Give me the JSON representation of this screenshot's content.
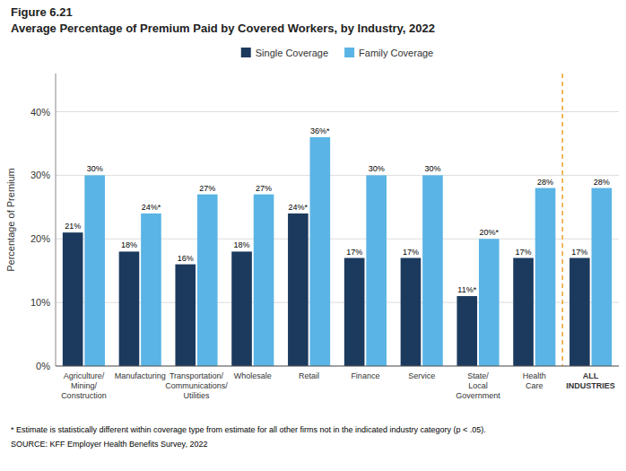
{
  "chart_data": {
    "type": "bar",
    "title": "Figure 6.21",
    "subtitle": "Average Percentage of Premium Paid by Covered Workers, by Industry, 2022",
    "categories": [
      "Agriculture/\nMining/\nConstruction",
      "Manufacturing",
      "Transportation/\nCommunications/\nUtilities",
      "Wholesale",
      "Retail",
      "Finance",
      "Service",
      "State/\nLocal\nGovernment",
      "Health\nCare",
      "ALL\nINDUSTRIES"
    ],
    "series": [
      {
        "name": "Single Coverage",
        "color": "#1c3a5e",
        "values": [
          21,
          18,
          16,
          18,
          24,
          17,
          17,
          11,
          17,
          17
        ],
        "value_labels": [
          "21%",
          "18%",
          "16%",
          "18%",
          "24%*",
          "17%",
          "17%",
          "11%*",
          "17%",
          "17%"
        ]
      },
      {
        "name": "Family Coverage",
        "color": "#5ab4e5",
        "values": [
          30,
          24,
          27,
          27,
          36,
          30,
          30,
          20,
          28,
          28
        ],
        "value_labels": [
          "30%",
          "24%*",
          "27%",
          "27%",
          "36%*",
          "30%",
          "30%",
          "20%*",
          "28%",
          "28%"
        ]
      }
    ],
    "y_label": "Percentage of Premium",
    "ylim": [
      0,
      46
    ],
    "yticks": [
      {
        "value": 0,
        "label": "0%"
      },
      {
        "value": 10,
        "label": "10%"
      },
      {
        "value": 20,
        "label": "20%"
      },
      {
        "value": 30,
        "label": "30%"
      },
      {
        "value": 40,
        "label": "40%"
      }
    ],
    "grid": true,
    "legend": "top",
    "data_labels": true,
    "annotations": [
      "* Estimate is statistically different within coverage type from estimate for all other firms not in the indicated industry category (p < .05).",
      "SOURCE: KFF Employer Health Benefits Survey, 2022"
    ]
  }
}
